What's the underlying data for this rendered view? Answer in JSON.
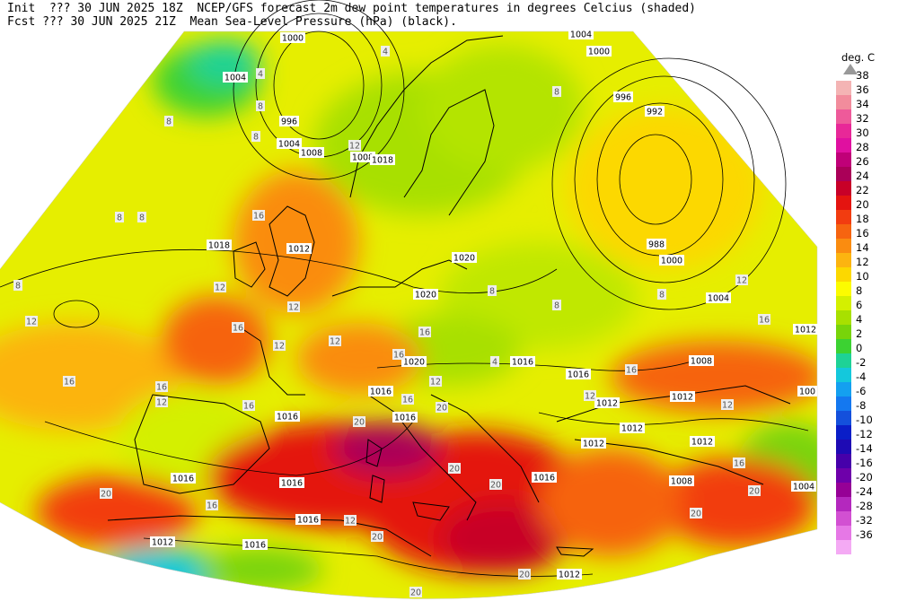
{
  "header": {
    "line1": "Init  ??? 30 JUN 2025 18Z  NCEP/GFS forecast 2m dew point temperatures in degrees Celcius (shaded)",
    "line2": "Fcst ??? 30 JUN 2025 21Z  Mean Sea-Level Pressure (hPa) (black)."
  },
  "legend": {
    "unit": "deg. C",
    "levels": [
      38,
      36,
      34,
      32,
      30,
      28,
      26,
      24,
      22,
      20,
      18,
      16,
      14,
      12,
      10,
      8,
      6,
      4,
      2,
      0,
      -2,
      -4,
      -6,
      -8,
      -10,
      -12,
      -14,
      -16,
      -20,
      -24,
      -28,
      -32,
      -36
    ],
    "colors": [
      "#f4b4b4",
      "#f28c9c",
      "#ee5a9a",
      "#e82898",
      "#e010a0",
      "#c00078",
      "#aa0058",
      "#c80028",
      "#e41410",
      "#f23c10",
      "#f66410",
      "#fa8c10",
      "#fcb410",
      "#fcd800",
      "#fcfc00",
      "#d4f000",
      "#a8e000",
      "#78d40a",
      "#3cd232",
      "#1ed296",
      "#14c8dc",
      "#14a0f0",
      "#1478f0",
      "#1450dc",
      "#0a1ec8",
      "#1e0ab4",
      "#4600aa",
      "#6e00aa",
      "#960096",
      "#b428be",
      "#d250d2",
      "#e678e6",
      "#f4aaf4"
    ]
  },
  "isobar_labels": [
    {
      "text": "1000",
      "kind": "isobar"
    },
    {
      "text": "1004",
      "kind": "isobar"
    },
    {
      "text": "996",
      "kind": "isobar"
    },
    {
      "text": "1004",
      "kind": "isobar"
    },
    {
      "text": "1008",
      "kind": "isobar"
    },
    {
      "text": "1008",
      "kind": "isobar"
    },
    {
      "text": "1018",
      "kind": "isobar"
    },
    {
      "text": "1004",
      "kind": "isobar"
    },
    {
      "text": "1000",
      "kind": "isobar"
    },
    {
      "text": "996",
      "kind": "isobar"
    },
    {
      "text": "992",
      "kind": "isobar"
    },
    {
      "text": "988",
      "kind": "isobar"
    },
    {
      "text": "1000",
      "kind": "isobar"
    },
    {
      "text": "1004",
      "kind": "isobar"
    },
    {
      "text": "1012",
      "kind": "isobar"
    },
    {
      "text": "1018",
      "kind": "isobar"
    },
    {
      "text": "1020",
      "kind": "isobar"
    },
    {
      "text": "1020",
      "kind": "isobar"
    },
    {
      "text": "1020",
      "kind": "isobar"
    },
    {
      "text": "1016",
      "kind": "isobar"
    },
    {
      "text": "1016",
      "kind": "isobar"
    },
    {
      "text": "1016",
      "kind": "isobar"
    },
    {
      "text": "1016",
      "kind": "isobar"
    },
    {
      "text": "1016",
      "kind": "isobar"
    },
    {
      "text": "1012",
      "kind": "isobar"
    },
    {
      "text": "1012",
      "kind": "isobar"
    },
    {
      "text": "1008",
      "kind": "isobar"
    },
    {
      "text": "1012",
      "kind": "isobar"
    },
    {
      "text": "1012",
      "kind": "isobar"
    },
    {
      "text": "1012",
      "kind": "isobar"
    },
    {
      "text": "1016",
      "kind": "isobar"
    },
    {
      "text": "1016",
      "kind": "isobar"
    },
    {
      "text": "1016",
      "kind": "isobar"
    },
    {
      "text": "1016",
      "kind": "isobar"
    },
    {
      "text": "1012",
      "kind": "isobar"
    },
    {
      "text": "1016",
      "kind": "isobar"
    },
    {
      "text": "1008",
      "kind": "isobar"
    },
    {
      "text": "1012",
      "kind": "isobar"
    },
    {
      "text": "1004",
      "kind": "isobar"
    },
    {
      "text": "1012",
      "kind": "isobar"
    },
    {
      "text": "100",
      "kind": "isobar"
    }
  ],
  "dewpoint_labels": [
    "8",
    "4",
    "8",
    "12",
    "8",
    "8",
    "8",
    "16",
    "12",
    "8",
    "12",
    "16",
    "16",
    "12",
    "16",
    "12",
    "12",
    "16",
    "20",
    "20",
    "16",
    "20",
    "20",
    "20",
    "20",
    "8",
    "4",
    "12",
    "8",
    "12",
    "16",
    "16",
    "16",
    "12",
    "16",
    "20",
    "16",
    "12",
    "20",
    "20",
    "20",
    "12",
    "12",
    "8",
    "8",
    "4",
    "16"
  ]
}
